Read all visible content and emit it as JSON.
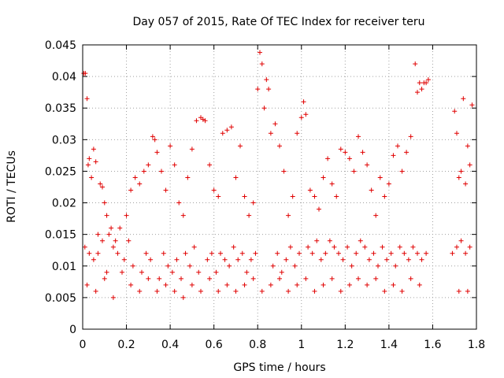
{
  "chart_data": {
    "type": "scatter",
    "title": "Day 057 of 2015, Rate Of TEC Index for receiver teru",
    "xlabel": "GPS time / hours",
    "ylabel": "ROTI / TECUs",
    "xlim": [
      0,
      1.8
    ],
    "ylim": [
      0,
      0.045
    ],
    "grid": true,
    "marker": "+",
    "marker_color": "#e00000",
    "x_ticks": [
      {
        "value": 0,
        "label": "0"
      },
      {
        "value": 0.2,
        "label": "0.2"
      },
      {
        "value": 0.4,
        "label": "0.4"
      },
      {
        "value": 0.6,
        "label": "0.6"
      },
      {
        "value": 0.8,
        "label": "0.8"
      },
      {
        "value": 1.0,
        "label": "1"
      },
      {
        "value": 1.2,
        "label": "1.2"
      },
      {
        "value": 1.4,
        "label": "1.4"
      },
      {
        "value": 1.6,
        "label": "1.6"
      },
      {
        "value": 1.8,
        "label": "1.8"
      }
    ],
    "y_ticks": [
      {
        "value": 0,
        "label": "0"
      },
      {
        "value": 0.005,
        "label": "0.005"
      },
      {
        "value": 0.01,
        "label": "0.01"
      },
      {
        "value": 0.015,
        "label": "0.015"
      },
      {
        "value": 0.02,
        "label": "0.02"
      },
      {
        "value": 0.025,
        "label": "0.025"
      },
      {
        "value": 0.03,
        "label": "0.03"
      },
      {
        "value": 0.035,
        "label": "0.035"
      },
      {
        "value": 0.04,
        "label": "0.04"
      },
      {
        "value": 0.045,
        "label": "0.045"
      }
    ],
    "series": [
      {
        "name": "ROTI",
        "x": [
          0.005,
          0.012,
          0.02,
          0.025,
          0.03,
          0.04,
          0.05,
          0.06,
          0.07,
          0.08,
          0.09,
          0.1,
          0.11,
          0.12,
          0.13,
          0.15,
          0.17,
          0.2,
          0.22,
          0.24,
          0.26,
          0.28,
          0.3,
          0.32,
          0.33,
          0.34,
          0.36,
          0.38,
          0.4,
          0.42,
          0.44,
          0.46,
          0.48,
          0.5,
          0.52,
          0.54,
          0.55,
          0.56,
          0.58,
          0.6,
          0.62,
          0.64,
          0.66,
          0.68,
          0.7,
          0.72,
          0.74,
          0.76,
          0.78,
          0.8,
          0.81,
          0.82,
          0.83,
          0.84,
          0.85,
          0.86,
          0.88,
          0.9,
          0.92,
          0.94,
          0.96,
          0.98,
          1.0,
          1.01,
          1.02,
          1.04,
          1.06,
          1.08,
          1.1,
          1.12,
          1.14,
          1.16,
          1.18,
          1.2,
          1.22,
          1.24,
          1.26,
          1.28,
          1.3,
          1.32,
          1.34,
          1.36,
          1.38,
          1.4,
          1.42,
          1.44,
          1.46,
          1.48,
          1.5,
          1.52,
          1.53,
          1.54,
          1.55,
          1.56,
          1.57,
          1.58,
          1.7,
          1.71,
          1.72,
          1.73,
          1.74,
          1.75,
          1.76,
          1.77,
          1.78,
          0.01,
          0.03,
          0.05,
          0.07,
          0.09,
          0.11,
          0.14,
          0.16,
          0.19,
          0.21,
          0.23,
          0.27,
          0.29,
          0.31,
          0.35,
          0.37,
          0.39,
          0.41,
          0.43,
          0.45,
          0.47,
          0.49,
          0.51,
          0.53,
          0.57,
          0.59,
          0.61,
          0.63,
          0.65,
          0.67,
          0.69,
          0.71,
          0.73,
          0.75,
          0.77,
          0.79,
          0.87,
          0.89,
          0.91,
          0.93,
          0.95,
          0.97,
          0.99,
          1.03,
          1.05,
          1.07,
          1.09,
          1.11,
          1.13,
          1.15,
          1.17,
          1.19,
          1.21,
          1.23,
          1.25,
          1.27,
          1.29,
          1.31,
          1.33,
          1.35,
          1.37,
          1.39,
          1.41,
          1.43,
          1.45,
          1.47,
          1.49,
          1.51,
          1.53,
          1.55,
          1.57,
          1.69,
          1.71,
          1.73,
          1.75,
          1.77,
          0.02,
          0.06,
          0.1,
          0.14,
          0.18,
          0.22,
          0.26,
          0.3,
          0.34,
          0.38,
          0.42,
          0.46,
          0.5,
          0.54,
          0.58,
          0.62,
          0.66,
          0.7,
          0.74,
          0.78,
          0.82,
          0.86,
          0.9,
          0.94,
          0.98,
          1.02,
          1.06,
          1.1,
          1.14,
          1.18,
          1.22,
          1.26,
          1.3,
          1.34,
          1.38,
          1.42,
          1.46,
          1.5,
          1.54,
          1.72,
          1.76
        ],
        "y": [
          0.0405,
          0.0405,
          0.0365,
          0.026,
          0.027,
          0.024,
          0.0285,
          0.0265,
          0.015,
          0.023,
          0.0225,
          0.02,
          0.018,
          0.015,
          0.016,
          0.014,
          0.016,
          0.018,
          0.022,
          0.024,
          0.023,
          0.025,
          0.026,
          0.0305,
          0.03,
          0.028,
          0.025,
          0.022,
          0.029,
          0.026,
          0.02,
          0.018,
          0.024,
          0.0285,
          0.033,
          0.0335,
          0.0332,
          0.033,
          0.026,
          0.022,
          0.021,
          0.031,
          0.0315,
          0.032,
          0.024,
          0.029,
          0.021,
          0.018,
          0.02,
          0.038,
          0.0438,
          0.042,
          0.035,
          0.0395,
          0.038,
          0.031,
          0.0325,
          0.029,
          0.025,
          0.018,
          0.021,
          0.031,
          0.0335,
          0.036,
          0.034,
          0.022,
          0.021,
          0.019,
          0.024,
          0.027,
          0.023,
          0.021,
          0.0285,
          0.028,
          0.027,
          0.025,
          0.0305,
          0.028,
          0.026,
          0.022,
          0.018,
          0.024,
          0.021,
          0.023,
          0.0275,
          0.029,
          0.025,
          0.028,
          0.0305,
          0.042,
          0.0375,
          0.039,
          0.038,
          0.039,
          0.039,
          0.0395,
          0.0345,
          0.031,
          0.024,
          0.025,
          0.0365,
          0.023,
          0.029,
          0.026,
          0.0355,
          0.013,
          0.012,
          0.011,
          0.012,
          0.014,
          0.009,
          0.013,
          0.012,
          0.011,
          0.014,
          0.01,
          0.009,
          0.012,
          0.011,
          0.008,
          0.012,
          0.01,
          0.009,
          0.011,
          0.008,
          0.012,
          0.01,
          0.013,
          0.009,
          0.011,
          0.012,
          0.009,
          0.012,
          0.011,
          0.01,
          0.013,
          0.011,
          0.012,
          0.009,
          0.011,
          0.012,
          0.01,
          0.012,
          0.009,
          0.011,
          0.013,
          0.01,
          0.012,
          0.013,
          0.012,
          0.014,
          0.011,
          0.012,
          0.014,
          0.013,
          0.012,
          0.011,
          0.013,
          0.01,
          0.012,
          0.014,
          0.013,
          0.011,
          0.012,
          0.01,
          0.013,
          0.011,
          0.012,
          0.01,
          0.013,
          0.012,
          0.011,
          0.013,
          0.012,
          0.011,
          0.012,
          0.012,
          0.013,
          0.014,
          0.012,
          0.013,
          0.007,
          0.006,
          0.008,
          0.005,
          0.009,
          0.007,
          0.006,
          0.008,
          0.006,
          0.007,
          0.006,
          0.005,
          0.007,
          0.006,
          0.008,
          0.006,
          0.007,
          0.006,
          0.007,
          0.008,
          0.006,
          0.007,
          0.008,
          0.006,
          0.007,
          0.008,
          0.006,
          0.007,
          0.008,
          0.006,
          0.007,
          0.008,
          0.007,
          0.008,
          0.006,
          0.007,
          0.006,
          0.008,
          0.007,
          0.006,
          0.006
        ]
      }
    ]
  }
}
